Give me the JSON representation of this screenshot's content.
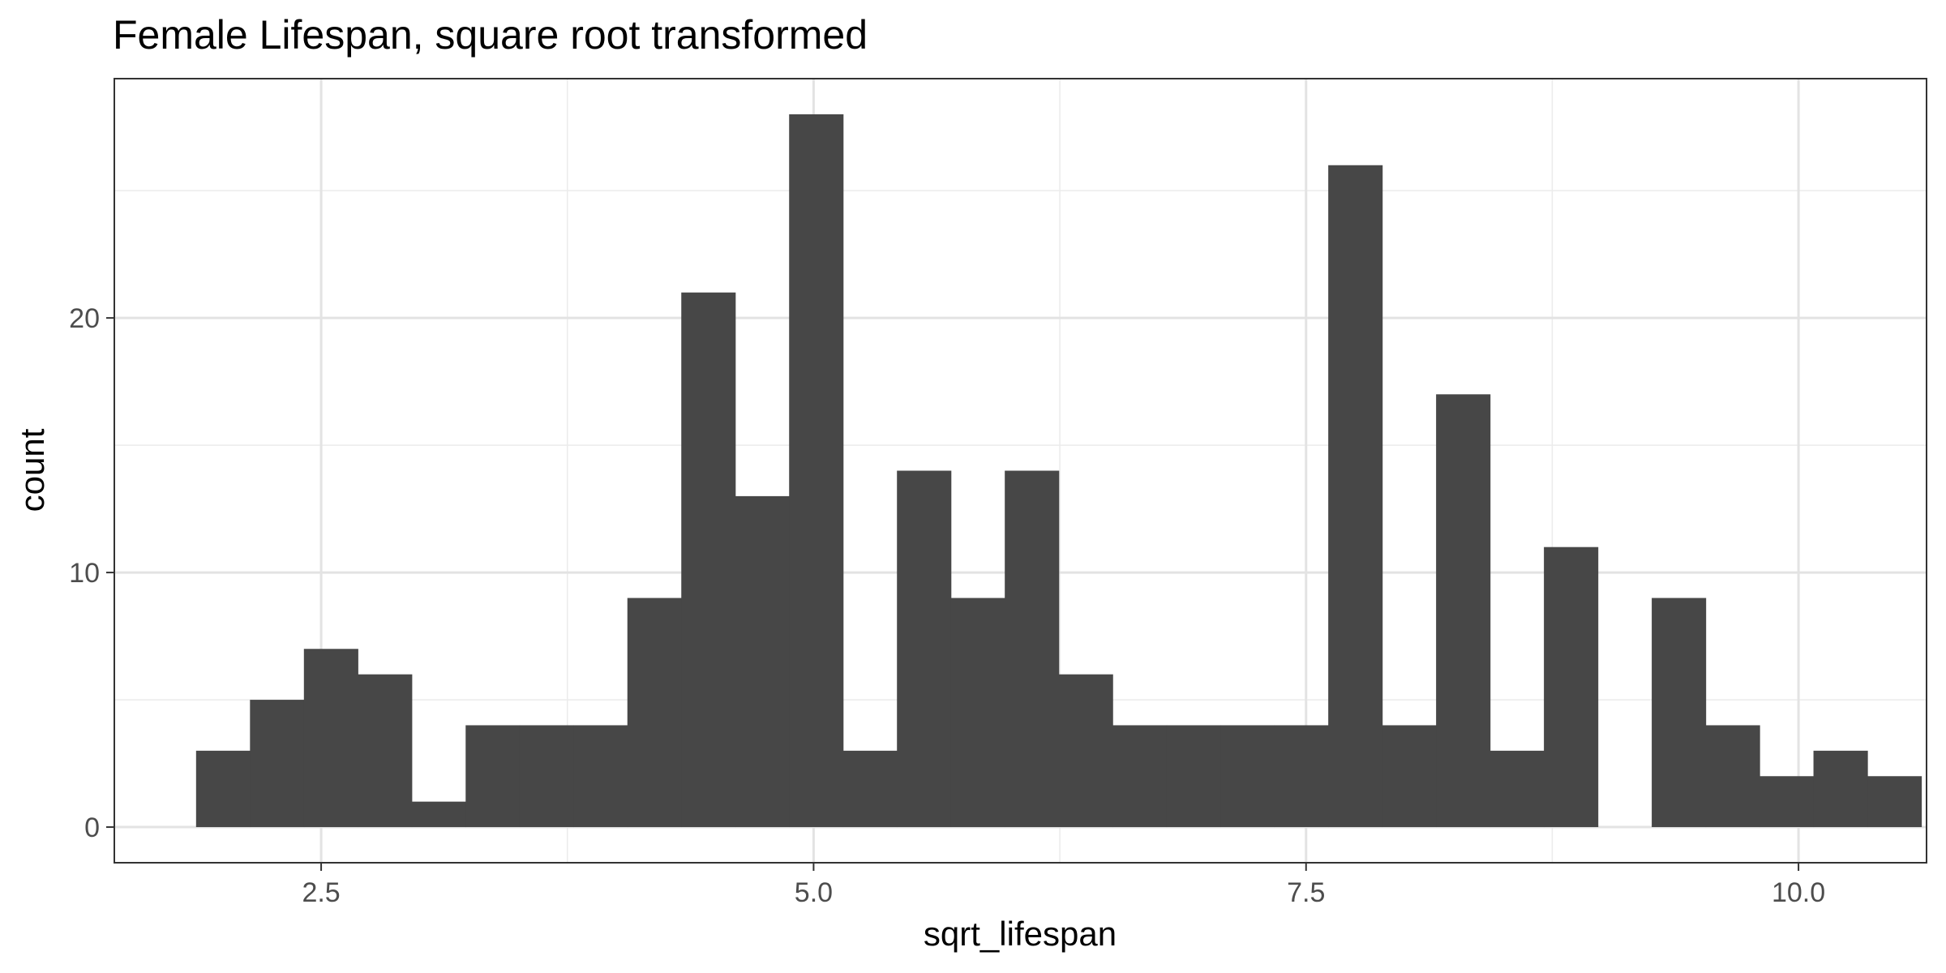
{
  "chart_data": {
    "type": "bar",
    "title": "Female Lifespan, square root transformed",
    "xlabel": "sqrt_lifespan",
    "ylabel": "count",
    "xlim": [
      1.45,
      10.65
    ],
    "ylim": [
      -1.4,
      29.4
    ],
    "x_ticks": [
      2.5,
      5.0,
      7.5,
      10.0
    ],
    "x_tick_labels": [
      "2.5",
      "5.0",
      "7.5",
      "10.0"
    ],
    "x_minor": [
      3.75,
      6.25,
      8.75
    ],
    "y_ticks": [
      0,
      10,
      20
    ],
    "y_tick_labels": [
      "0",
      "10",
      "20"
    ],
    "y_minor": [
      5,
      15,
      25
    ],
    "grid": true,
    "bar_color": "#474747",
    "bins": {
      "start": 1.865,
      "width": 0.2737,
      "counts": [
        3,
        5,
        7,
        6,
        1,
        4,
        4,
        4,
        9,
        21,
        13,
        28,
        3,
        14,
        9,
        14,
        6,
        4,
        4,
        4,
        4,
        26,
        4,
        17,
        3,
        11,
        0,
        9,
        4,
        2,
        3,
        2
      ]
    }
  }
}
